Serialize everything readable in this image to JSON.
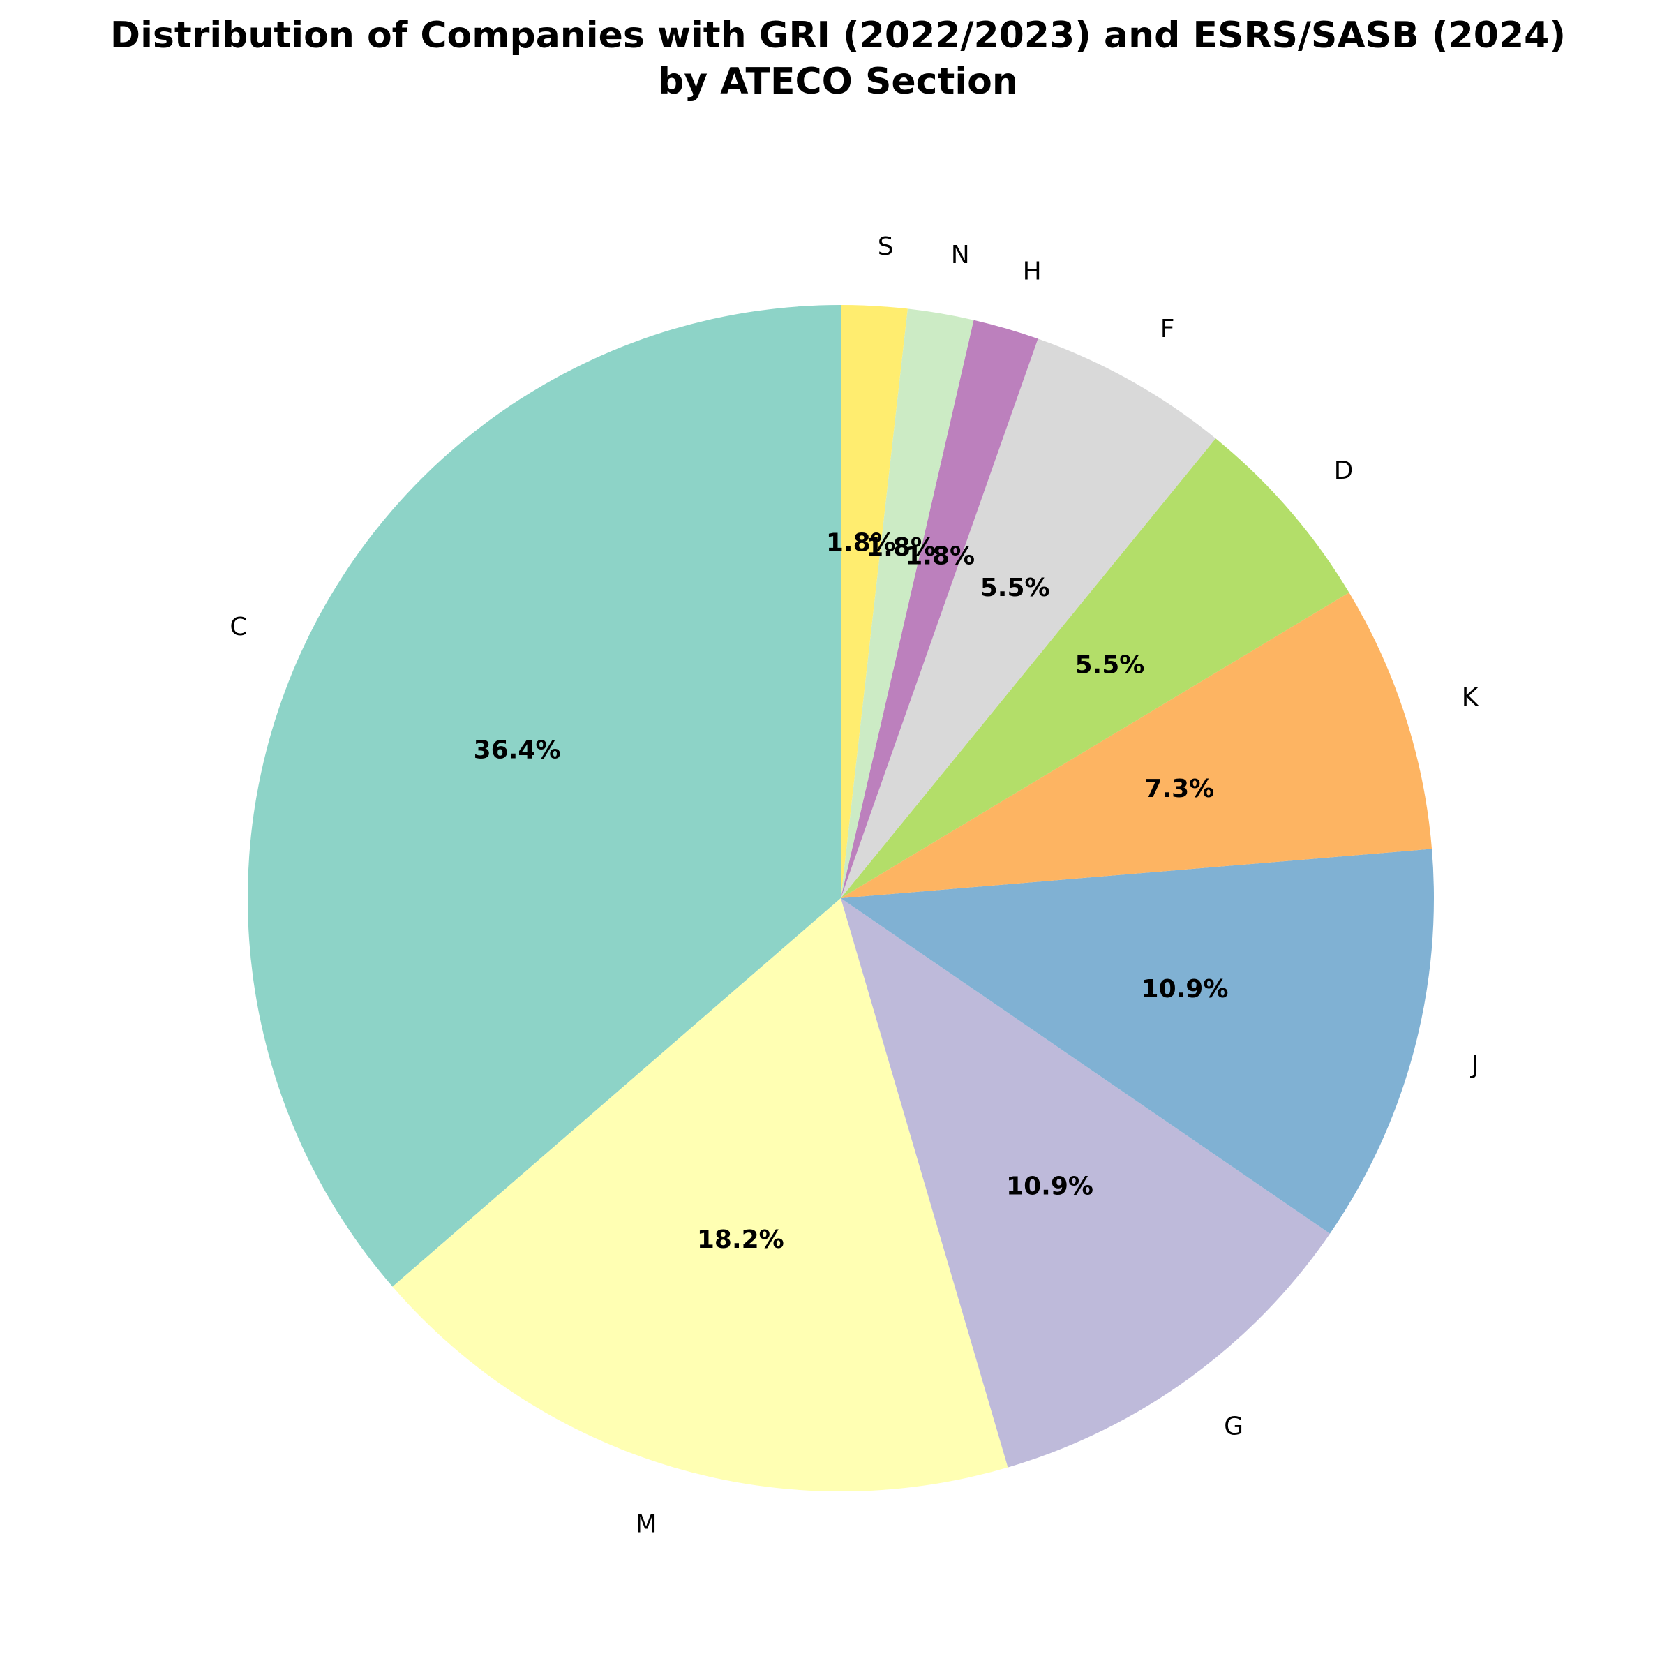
{
  "chart_data": {
    "type": "pie",
    "title_line1": "Distribution of Companies with GRI (2022/2023) and ESRS/SASB (2024)",
    "title_line2": "by ATECO Section",
    "start_angle_deg": 90,
    "direction": "counterclockwise",
    "slices": [
      {
        "label": "C",
        "pct_label": "36.4%",
        "value": 36.4,
        "color": "#8dd3c7"
      },
      {
        "label": "M",
        "pct_label": "18.2%",
        "value": 18.2,
        "color": "#ffffb3"
      },
      {
        "label": "G",
        "pct_label": "10.9%",
        "value": 10.9,
        "color": "#bebada"
      },
      {
        "label": "J",
        "pct_label": "10.9%",
        "value": 10.9,
        "color": "#80b1d3"
      },
      {
        "label": "K",
        "pct_label": "7.3%",
        "value": 7.3,
        "color": "#fdb462"
      },
      {
        "label": "D",
        "pct_label": "5.5%",
        "value": 5.5,
        "color": "#b3de69"
      },
      {
        "label": "F",
        "pct_label": "5.5%",
        "value": 5.5,
        "color": "#d9d9d9"
      },
      {
        "label": "H",
        "pct_label": "1.8%",
        "value": 1.8,
        "color": "#bc80bd"
      },
      {
        "label": "N",
        "pct_label": "1.8%",
        "value": 1.8,
        "color": "#ccebc5"
      },
      {
        "label": "S",
        "pct_label": "1.8%",
        "value": 1.8,
        "color": "#ffed6f"
      }
    ]
  }
}
